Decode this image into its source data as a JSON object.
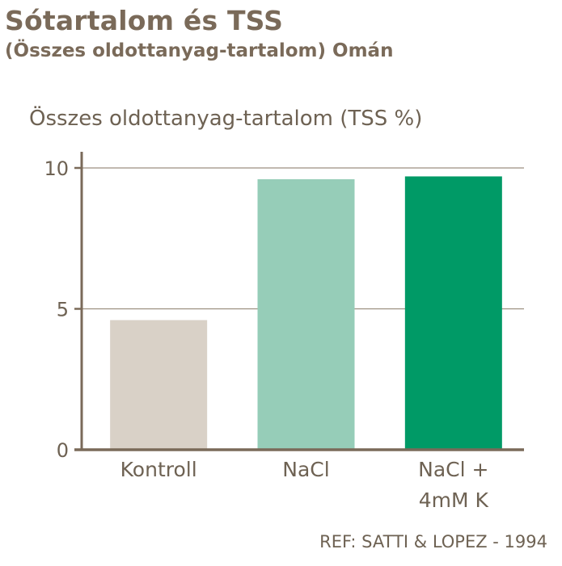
{
  "chart_data": {
    "type": "bar",
    "title": "Sótartalom és TSS",
    "subtitle": "(Összes oldottanyag-tartalom) Omán",
    "ylabel": "Összes oldottanyag-tartalom (TSS %)",
    "xlabel": "",
    "categories": [
      [
        "Kontroll"
      ],
      [
        "NaCl"
      ],
      [
        "NaCl +",
        "4mM K"
      ]
    ],
    "values": [
      4.6,
      9.6,
      9.7
    ],
    "colors": [
      "#d9d1c7",
      "#96cdb8",
      "#009a66"
    ],
    "ylim": [
      0,
      10
    ],
    "yticks": [
      0,
      5,
      10
    ],
    "grid": true,
    "reference": "REF: SATTI & LOPEZ - 1994"
  },
  "style": {
    "axis_color": "#7a6a59",
    "text_color": "#6e6253"
  }
}
